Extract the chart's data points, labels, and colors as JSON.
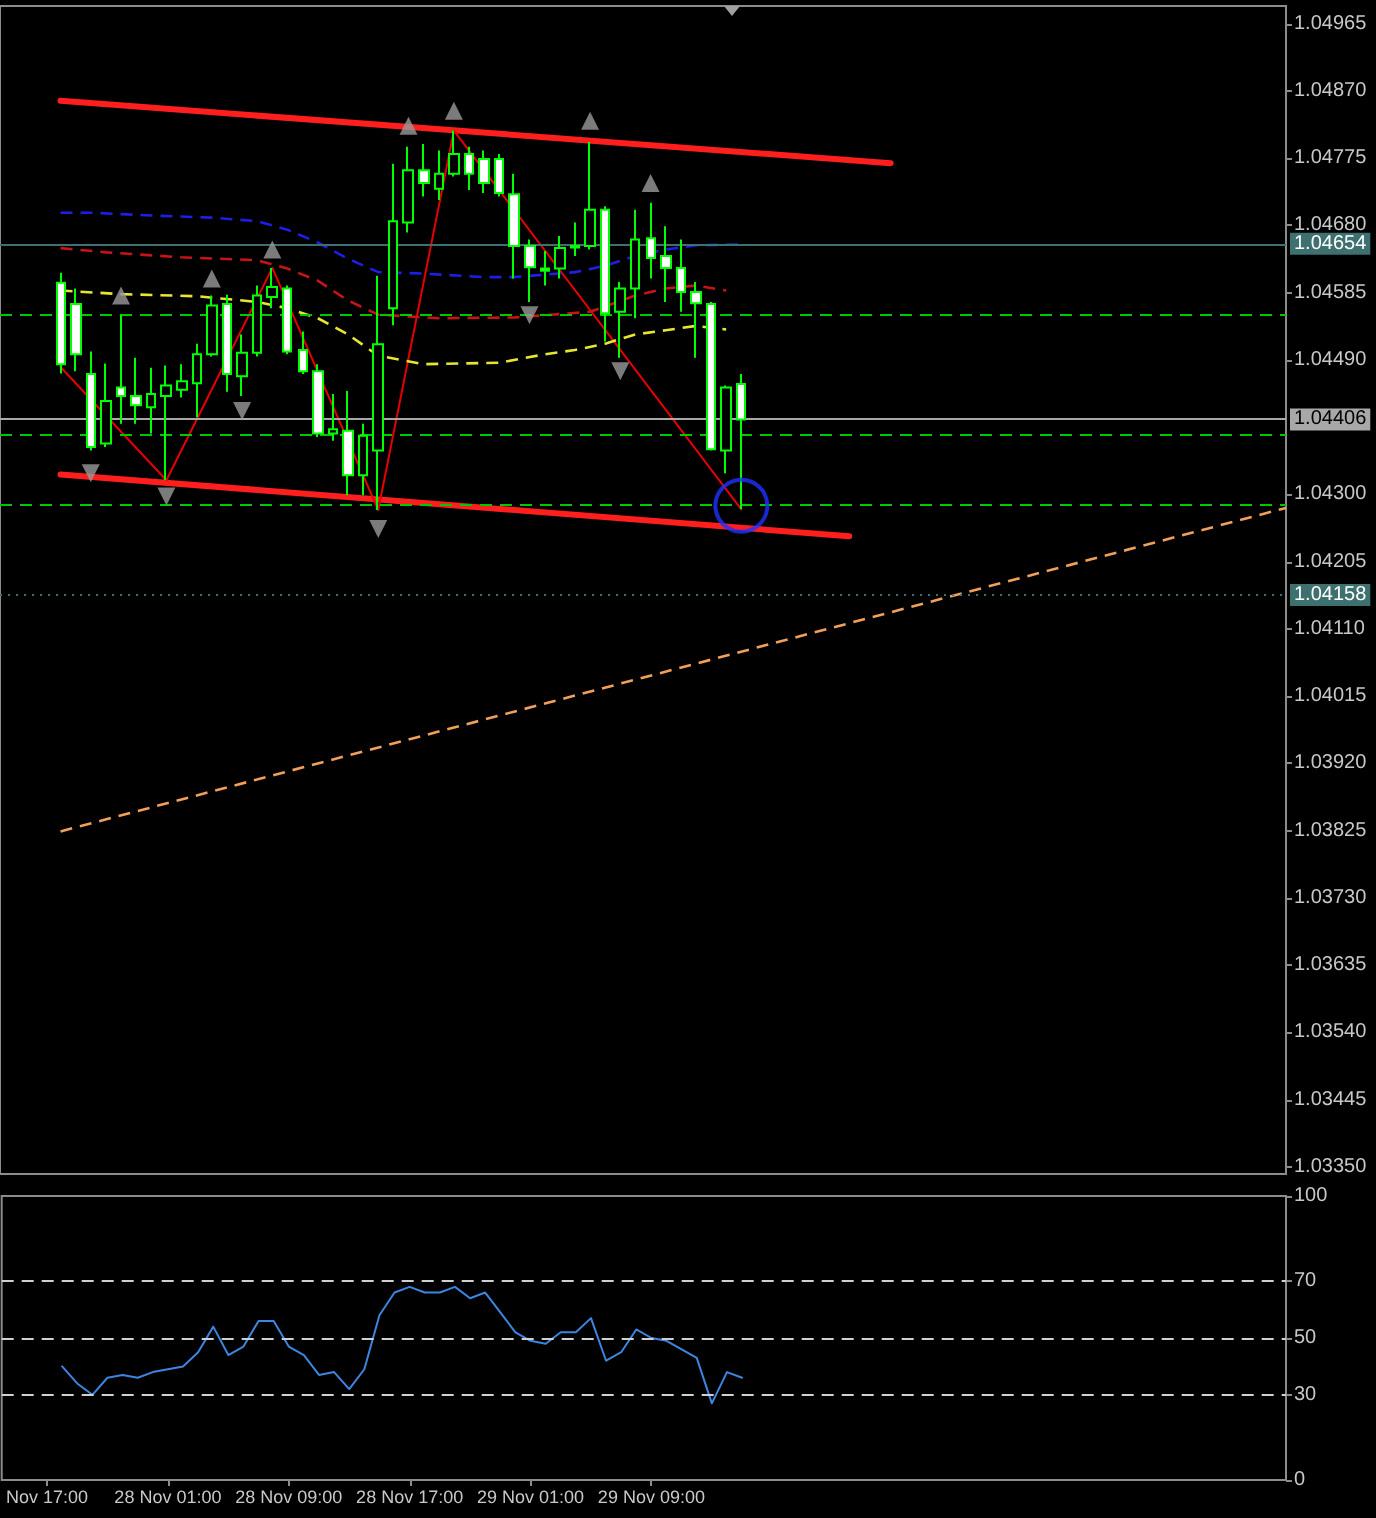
{
  "chart_data": [
    {
      "type": "candlestick",
      "color": "#00ff00",
      "xlim": [
        "--11-27T14:00",
        "--12-01T03:00"
      ],
      "ylim": [
        1.0334,
        1.0499
      ],
      "tick_labels": "y",
      "yticks": [
        {
          "value": 1.0335,
          "label": "1.03350"
        },
        1.03445,
        {
          "value": 1.0354,
          "label": "1.03540"
        },
        1.03635,
        {
          "value": 1.0373,
          "label": "1.03730"
        },
        1.03825,
        {
          "value": 1.0392,
          "label": "1.03920"
        },
        1.04015,
        {
          "value": 1.0411,
          "label": "1.04110"
        },
        1.04205,
        {
          "value": 1.043,
          "label": "1.04300"
        },
        {
          "value": 1.0449,
          "label": "1.04490"
        },
        1.04585,
        {
          "value": 1.0468,
          "label": "1.04680"
        },
        1.04775,
        {
          "value": 1.0487,
          "label": "1.04870"
        },
        1.04965
      ],
      "x": [
        "--11-27T18:00",
        "--11-27T19:00",
        "--11-27T20:00",
        "--11-27T21:00",
        "--11-27T22:00",
        "--11-27T23:00",
        "--11-28T00:00",
        "--11-28T01:00",
        "--11-28T02:00",
        "--11-28T03:00",
        "--11-28T04:00",
        "--11-28T05:00",
        "--11-28T06:00",
        "--11-28T07:00",
        "--11-28T08:00",
        "--11-28T09:00",
        "--11-28T10:00",
        "--11-28T11:00",
        "--11-28T12:00",
        "--11-28T13:00",
        "--11-28T14:00",
        "--11-28T15:00",
        "--11-28T16:00",
        "--11-28T17:00",
        "--11-28T18:00",
        "--11-28T19:00",
        "--11-28T20:00",
        "--11-28T21:00",
        "--11-28T22:00",
        "--11-28T23:00",
        "--11-29T00:00",
        "--11-29T01:00",
        "--11-29T02:00",
        "--11-29T03:00",
        "--11-29T04:00",
        "--11-29T05:00",
        "--11-29T06:00",
        "--11-29T07:00",
        "--11-29T08:00",
        "--11-29T09:00",
        "--11-29T10:00",
        "--11-29T11:00",
        "--11-29T12:00",
        "--11-29T13:00",
        "--11-29T14:00",
        "--11-29T15:00"
      ],
      "ohlc": [
        [
          1.04599,
          1.04613,
          1.04471,
          1.04484
        ],
        [
          1.04569,
          1.04591,
          1.04474,
          1.04498
        ],
        [
          1.0447,
          1.04502,
          1.04362,
          1.04367
        ],
        [
          1.04372,
          1.04485,
          1.04367,
          1.04432
        ],
        [
          1.04451,
          1.04553,
          1.044,
          1.04439
        ],
        [
          1.04439,
          1.04493,
          1.044,
          1.04426
        ],
        [
          1.04423,
          1.04479,
          1.04386,
          1.04442
        ],
        [
          1.04439,
          1.04482,
          1.0432,
          1.04454
        ],
        [
          1.04448,
          1.04484,
          1.04437,
          1.0446
        ],
        [
          1.04457,
          1.04513,
          1.04409,
          1.04498
        ],
        [
          1.04498,
          1.04581,
          1.04495,
          1.04567
        ],
        [
          1.04569,
          1.04582,
          1.04445,
          1.0447
        ],
        [
          1.04467,
          1.04526,
          1.04439,
          1.045
        ],
        [
          1.045,
          1.04595,
          1.04495,
          1.04581
        ],
        [
          1.04579,
          1.0462,
          1.04563,
          1.04593
        ],
        [
          1.04591,
          1.04595,
          1.04498,
          1.04502
        ],
        [
          1.04504,
          1.0453,
          1.0447,
          1.04474
        ],
        [
          1.04474,
          1.04484,
          1.04381,
          1.04386
        ],
        [
          1.04386,
          1.04442,
          1.04376,
          1.04392
        ],
        [
          1.0439,
          1.04446,
          1.04299,
          1.04327
        ],
        [
          1.04327,
          1.044,
          1.04299,
          1.04383
        ],
        [
          1.04362,
          1.04609,
          1.04278,
          1.04512
        ],
        [
          1.04563,
          1.04767,
          1.04539,
          1.04686
        ],
        [
          1.04684,
          1.04791,
          1.0467,
          1.04758
        ],
        [
          1.04758,
          1.04795,
          1.04721,
          1.0474
        ],
        [
          1.04732,
          1.04786,
          1.04716,
          1.04753
        ],
        [
          1.04753,
          1.04814,
          1.04749,
          1.04781
        ],
        [
          1.04781,
          1.04791,
          1.0473,
          1.04753
        ],
        [
          1.04774,
          1.04786,
          1.04726,
          1.0474
        ],
        [
          1.04774,
          1.04781,
          1.04721,
          1.04726
        ],
        [
          1.04724,
          1.04753,
          1.04605,
          1.04651
        ],
        [
          1.04651,
          1.0466,
          1.04572,
          1.04621
        ],
        [
          1.04619,
          1.04644,
          1.04595,
          1.04616
        ],
        [
          1.04619,
          1.04665,
          1.04605,
          1.04648
        ],
        [
          1.04649,
          1.04684,
          1.04637,
          1.04651
        ],
        [
          1.04651,
          1.04798,
          1.04646,
          1.04702
        ],
        [
          1.04702,
          1.04707,
          1.04516,
          1.04556
        ],
        [
          1.04558,
          1.046,
          1.04493,
          1.04591
        ],
        [
          1.04591,
          1.04702,
          1.04549,
          1.0466
        ],
        [
          1.04662,
          1.04712,
          1.04605,
          1.04634
        ],
        [
          1.04637,
          1.04679,
          1.04572,
          1.0462
        ],
        [
          1.0462,
          1.0466,
          1.04558,
          1.04586
        ],
        [
          1.04586,
          1.046,
          1.04493,
          1.0457
        ],
        [
          1.04569,
          1.04572,
          1.04362,
          1.04364
        ],
        [
          1.04362,
          1.04454,
          1.0433,
          1.04451
        ],
        [
          1.04456,
          1.0447,
          1.04279,
          1.04406
        ]
      ],
      "series": [
        {
          "type": "line",
          "color": "#ff1e1e",
          "line_style": "solid",
          "x": [
            "--11-27T18:00",
            "--11-30T00:52"
          ],
          "values": [
            1.04856,
            1.04768
          ]
        },
        {
          "type": "line",
          "color": "#ff1e1e",
          "line_style": "solid",
          "x": [
            "--11-27T18:00",
            "--11-29T22:08"
          ],
          "values": [
            1.04328,
            1.04241
          ]
        },
        {
          "type": "line",
          "color": "#e60000",
          "line_style": "solid",
          "x": [
            "--11-27T18:00",
            "--11-28T01:00",
            "--11-28T08:00",
            "--11-28T15:00",
            "--11-28T20:00",
            "--11-29T15:00"
          ],
          "values": [
            1.0448,
            1.0432,
            1.0462,
            1.04278,
            1.04814,
            1.04279
          ]
        },
        {
          "type": "line",
          "color": "#1e1ee6",
          "line_style": "dashed",
          "x": [
            "--11-27T18:00",
            "--11-27T20:00",
            "--11-28T00:00",
            "--11-28T04:00",
            "--11-28T07:00",
            "--11-28T09:00",
            "--11-28T11:00",
            "--11-28T13:00",
            "--11-28T15:00",
            "--11-28T18:00",
            "--11-28T22:00",
            "--11-29T00:00",
            "--11-29T04:00",
            "--11-29T06:00",
            "--11-29T08:00",
            "--11-29T10:00",
            "--11-29T12:00",
            "--11-29T15:00"
          ],
          "values": [
            1.04698,
            1.04698,
            1.04694,
            1.04691,
            1.04686,
            1.04674,
            1.04656,
            1.04633,
            1.04614,
            1.04612,
            1.04607,
            1.04607,
            1.04614,
            1.04623,
            1.04637,
            1.04646,
            1.04652,
            1.04653
          ]
        },
        {
          "type": "line",
          "color": "#c81414",
          "line_style": "dashed",
          "x": [
            "--11-27T18:00",
            "--11-27T21:00",
            "--11-28T02:00",
            "--11-28T07:00",
            "--11-28T09:00",
            "--11-28T11:00",
            "--11-28T13:00",
            "--11-28T15:00",
            "--11-28T19:00",
            "--11-29T00:00",
            "--11-29T05:00",
            "--11-29T08:00",
            "--11-29T10:00",
            "--11-29T12:00",
            "--11-29T14:00"
          ],
          "values": [
            1.04648,
            1.04642,
            1.04635,
            1.04631,
            1.04619,
            1.04602,
            1.04574,
            1.04554,
            1.04549,
            1.0455,
            1.04558,
            1.04581,
            1.04591,
            1.04595,
            1.04588
          ]
        },
        {
          "type": "line",
          "color": "#e6e632",
          "line_style": "dashed",
          "x": [
            "--11-27T18:00",
            "--11-27T22:00",
            "--11-28T03:00",
            "--11-28T07:00",
            "--11-28T09:00",
            "--11-28T11:00",
            "--11-28T13:00",
            "--11-28T15:00",
            "--11-28T18:00",
            "--11-28T23:00",
            "--11-29T02:00",
            "--11-29T04:00",
            "--11-29T06:00",
            "--11-29T08:00",
            "--11-29T10:00",
            "--11-29T12:00",
            "--11-29T14:00"
          ],
          "values": [
            1.04588,
            1.04583,
            1.0458,
            1.04572,
            1.04563,
            1.04549,
            1.04526,
            1.04496,
            1.04484,
            1.04486,
            1.04498,
            1.04504,
            1.04513,
            1.04526,
            1.04532,
            1.04538,
            1.04533
          ]
        },
        {
          "type": "line",
          "color": "#f0a05a",
          "line_style": "dashed",
          "x": [
            "--11-27T18:00",
            "--12-01T03:00"
          ],
          "values": [
            1.03824,
            1.04281
          ]
        },
        {
          "type": "scatter",
          "color": "#9a9a9a",
          "marker": "triangle",
          "x": [
            "--11-27T22:00",
            "--11-28T04:00",
            "--11-28T08:00",
            "--11-28T17:00",
            "--11-28T20:00",
            "--11-29T05:00",
            "--11-29T09:00"
          ],
          "values": [
            1.04581,
            1.04605,
            1.04646,
            1.04821,
            1.04842,
            1.04828,
            1.0474
          ]
        },
        {
          "type": "scatter",
          "color": "#9a9a9a",
          "marker": "triangle",
          "x": [
            "--11-27T20:00",
            "--11-28T01:00",
            "--11-28T06:00",
            "--11-28T15:00",
            "--11-29T01:00",
            "--11-29T07:00"
          ],
          "values": [
            1.0433,
            1.04297,
            1.04418,
            1.04251,
            1.04553,
            1.04474
          ]
        },
        {
          "type": "scatter",
          "color": "#1e32ff",
          "marker": "circle",
          "x": [
            "--11-29T15:00"
          ],
          "values": [
            1.04284
          ]
        }
      ],
      "ref_lines": [
        {
          "axis": "y",
          "value": 1.04654,
          "label": "1.04654",
          "color": "#3f7070"
        },
        {
          "axis": "y",
          "value": 1.04406,
          "label": "1.04406",
          "color": "#a8a8a8"
        },
        {
          "axis": "y",
          "value": 1.04158,
          "label": "1.04158",
          "color": "#3f7070",
          "line_style": "dotted"
        },
        {
          "axis": "y",
          "value": 1.04554,
          "color": "#00c800",
          "line_style": "dashed"
        },
        {
          "axis": "y",
          "value": 1.04386,
          "color": "#00c800",
          "line_style": "dashed"
        },
        {
          "axis": "y",
          "value": 1.04286,
          "color": "#00c800",
          "line_style": "dashed"
        }
      ]
    },
    {
      "type": "line",
      "color": "#3d85e0",
      "xlim": [
        "--11-27T14:00",
        "--12-01T03:00"
      ],
      "ylim": [
        0,
        100
      ],
      "yticks": [
        0,
        30,
        50,
        70,
        100
      ],
      "xticks": [
        {
          "value": "--11-27T17:00",
          "label": "Nov 17:00"
        },
        {
          "value": "--11-28T01:00",
          "label": "28 Nov 01:00"
        },
        {
          "value": "--11-28T09:00",
          "label": "28 Nov 09:00"
        },
        {
          "value": "--11-28T17:00",
          "label": "28 Nov 17:00"
        },
        {
          "value": "--11-29T01:00",
          "label": "29 Nov 01:00"
        },
        {
          "value": "--11-29T09:00",
          "label": "29 Nov 09:00"
        }
      ],
      "x": [
        "--11-27T18:00",
        "--11-27T19:00",
        "--11-27T20:00",
        "--11-27T21:00",
        "--11-27T22:00",
        "--11-27T23:00",
        "--11-28T00:00",
        "--11-28T01:00",
        "--11-28T02:00",
        "--11-28T03:00",
        "--11-28T04:00",
        "--11-28T05:00",
        "--11-28T06:00",
        "--11-28T07:00",
        "--11-28T08:00",
        "--11-28T09:00",
        "--11-28T10:00",
        "--11-28T11:00",
        "--11-28T12:00",
        "--11-28T13:00",
        "--11-28T14:00",
        "--11-28T15:00",
        "--11-28T16:00",
        "--11-28T17:00",
        "--11-28T18:00",
        "--11-28T19:00",
        "--11-28T20:00",
        "--11-28T21:00",
        "--11-28T22:00",
        "--11-28T23:00",
        "--11-29T00:00",
        "--11-29T01:00",
        "--11-29T02:00",
        "--11-29T03:00",
        "--11-29T04:00",
        "--11-29T05:00",
        "--11-29T06:00",
        "--11-29T07:00",
        "--11-29T08:00",
        "--11-29T09:00",
        "--11-29T10:00",
        "--11-29T11:00",
        "--11-29T12:00",
        "--11-29T13:00",
        "--11-29T14:00",
        "--11-29T15:00"
      ],
      "values": [
        40,
        34,
        30,
        36,
        37,
        36,
        38,
        39,
        40,
        45,
        54,
        44,
        47,
        56,
        56,
        47,
        44,
        37,
        38,
        32,
        39,
        58,
        66,
        68,
        66,
        66,
        68,
        64,
        66,
        59,
        52,
        49,
        48,
        52,
        52,
        57,
        42,
        45,
        53,
        50,
        49,
        46,
        43,
        27,
        38,
        36
      ],
      "ref_lines": [
        {
          "axis": "y",
          "value": 70,
          "color": "#d0d0d0",
          "line_style": "dashed"
        },
        {
          "axis": "y",
          "value": 50,
          "color": "#d0d0d0",
          "line_style": "dashed"
        },
        {
          "axis": "y",
          "value": 30,
          "color": "#d0d0d0",
          "line_style": "dashed"
        }
      ]
    }
  ]
}
